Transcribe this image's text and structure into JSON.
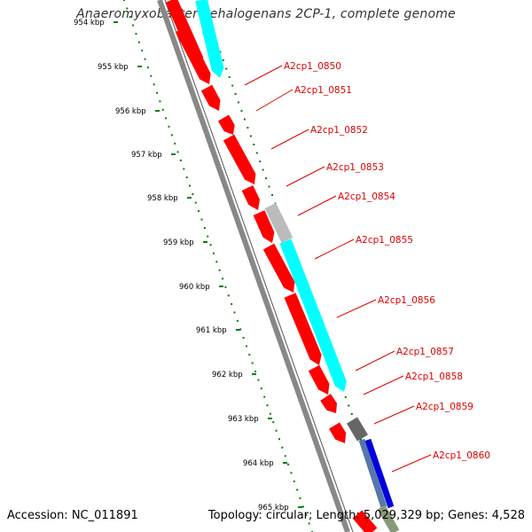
{
  "title": "Anaeromyxobacter dehalogenans 2CP-1, complete genome",
  "footer": {
    "accession": "Accession: NC_011891",
    "summary": "Topology: circular; Length: 5,029,329 bp; Genes: 4,528"
  },
  "colors": {
    "cds_forward": "#ff0000",
    "cds_reverse": "#00ffff",
    "gene_label": "#e00000",
    "tick": "#008000",
    "backbone": "#888888"
  },
  "scale_ticks": [
    "954 kbp",
    "955 kbp",
    "956 kbp",
    "957 kbp",
    "958 kbp",
    "959 kbp",
    "960 kbp",
    "961 kbp",
    "962 kbp",
    "963 kbp",
    "964 kbp",
    "965 kbp"
  ],
  "gene_labels": [
    "A2cp1_0850",
    "A2cp1_0851",
    "A2cp1_0852",
    "A2cp1_0853",
    "A2cp1_0854",
    "A2cp1_0855",
    "A2cp1_0856",
    "A2cp1_0857",
    "A2cp1_0858",
    "A2cp1_0859",
    "A2cp1_0860"
  ]
}
